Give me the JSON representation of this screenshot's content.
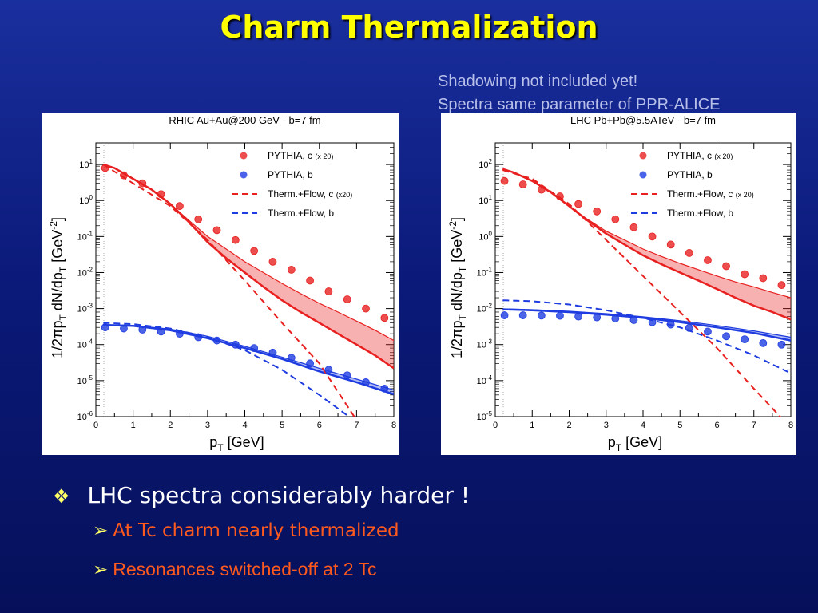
{
  "slide": {
    "title": "Charm Thermalization",
    "note_line1": "Shadowing not included yet!",
    "note_line2": "Spectra same parameter of PPR-ALICE",
    "bullet_main": "LHC spectra considerably harder !",
    "bullet_sub1": "At Tc charm nearly thermalized",
    "bullet_sub2": "Resonances switched-off at 2 Tc",
    "bullet_main_marker": "❖",
    "bullet_sub_marker": "➢",
    "colors": {
      "title": "#ffff00",
      "charm": "#e82020",
      "bottom": "#1e3ce0",
      "sub_bullet": "#ff5a1e"
    }
  },
  "chart_data": [
    {
      "type": "scatter",
      "title": "RHIC Au+Au@200 GeV - b=7 fm",
      "xlabel_main": "p",
      "xlabel_sub": "T",
      "xlabel_unit": "[GeV]",
      "ylabel_a": "1/2",
      "ylabel_pi": "π",
      "ylabel_b": "p",
      "ylabel_t1": "T",
      "ylabel_c": " dN/dp",
      "ylabel_t2": "T",
      "ylabel_d": "  [GeV",
      "ylabel_exp": "-2",
      "ylabel_e": "]",
      "xlim": [
        0,
        8
      ],
      "ylim_exp": [
        -6,
        1.6
      ],
      "log_y": true,
      "xticks": [
        "0",
        "1",
        "2",
        "3",
        "4",
        "5",
        "6",
        "7",
        "8"
      ],
      "yticks": [
        {
          "exp": -6,
          "base": "10",
          "pow": "-6"
        },
        {
          "exp": -5,
          "base": "10",
          "pow": "-5"
        },
        {
          "exp": -4,
          "base": "10",
          "pow": "-4"
        },
        {
          "exp": -3,
          "base": "10",
          "pow": "-3"
        },
        {
          "exp": -2,
          "base": "10",
          "pow": "-2"
        },
        {
          "exp": -1,
          "base": "10",
          "pow": "-1"
        },
        {
          "exp": 0,
          "base": "10",
          "pow": "0"
        },
        {
          "exp": 1,
          "base": "10",
          "pow": "1"
        }
      ],
      "legend": [
        {
          "text": "PYTHIA, c",
          "small": "(x 20)",
          "kind": "dot",
          "color": "#e82020"
        },
        {
          "text": "PYTHIA, b",
          "small": "",
          "kind": "dot",
          "color": "#1e3ce0"
        },
        {
          "text": "Therm.+Flow, c",
          "small": "(x20)",
          "kind": "dash",
          "color": "#e82020"
        },
        {
          "text": "Therm.+Flow, b",
          "small": "",
          "kind": "dash",
          "color": "#1e3ce0"
        }
      ],
      "series": [
        {
          "name": "PYTHIA, c",
          "kind": "points",
          "color": "#e82020",
          "x": [
            0.25,
            0.75,
            1.25,
            1.75,
            2.25,
            2.75,
            3.25,
            3.75,
            4.25,
            4.75,
            5.25,
            5.75,
            6.25,
            6.75,
            7.25,
            7.75
          ],
          "y": [
            8,
            5,
            3,
            1.5,
            0.7,
            0.3,
            0.15,
            0.08,
            0.04,
            0.02,
            0.012,
            0.006,
            0.003,
            0.0018,
            0.001,
            0.00055
          ]
        },
        {
          "name": "PYTHIA, b",
          "kind": "points",
          "color": "#1e3ce0",
          "x": [
            0.25,
            0.75,
            1.25,
            1.75,
            2.25,
            2.75,
            3.25,
            3.75,
            4.25,
            4.75,
            5.25,
            5.75,
            6.25,
            6.75,
            7.25,
            7.75
          ],
          "y": [
            0.0003,
            0.00028,
            0.00026,
            0.00023,
            0.0002,
            0.00016,
            0.00013,
            0.0001,
            8e-05,
            6e-05,
            4.3e-05,
            3e-05,
            2e-05,
            1.4e-05,
            9e-06,
            6e-06
          ]
        },
        {
          "name": "Therm.+Flow, c",
          "kind": "dash",
          "color": "#e82020",
          "x": [
            0.2,
            1,
            2,
            3,
            4,
            5,
            6,
            7
          ],
          "y": [
            10,
            3,
            0.7,
            0.08,
            0.006,
            0.0004,
            3e-05,
            8e-07
          ]
        },
        {
          "name": "Therm.+Flow, b",
          "kind": "dash",
          "color": "#1e3ce0",
          "x": [
            0.2,
            1,
            2,
            3,
            4,
            5,
            6,
            7
          ],
          "y": [
            0.0004,
            0.00037,
            0.00028,
            0.00016,
            7e-05,
            2e-05,
            4e-06,
            7e-07
          ]
        },
        {
          "kind": "band",
          "color": "#e82020",
          "x": [
            0.2,
            0.5,
            1,
            1.5,
            2,
            2.5,
            3,
            3.5,
            4,
            4.5,
            5,
            5.5,
            6,
            6.5,
            7,
            7.5,
            8
          ],
          "y_low": [
            10,
            8,
            4,
            2,
            0.8,
            0.25,
            0.07,
            0.025,
            0.01,
            0.004,
            0.0017,
            0.0008,
            0.0004,
            0.0002,
            0.0001,
            5e-05,
            2.2e-05
          ],
          "y_high": [
            10,
            8,
            4,
            2,
            0.8,
            0.28,
            0.1,
            0.045,
            0.02,
            0.01,
            0.005,
            0.0026,
            0.0014,
            0.0008,
            0.00045,
            0.00025,
            0.00013
          ]
        },
        {
          "kind": "band",
          "color": "#1e3ce0",
          "x": [
            0.2,
            1,
            2,
            3,
            4,
            5,
            6,
            7,
            8
          ],
          "y_low": [
            0.00035,
            0.00033,
            0.00025,
            0.00015,
            8e-05,
            4e-05,
            1.8e-05,
            9e-06,
            4.2e-06
          ],
          "y_high": [
            0.00036,
            0.00034,
            0.00027,
            0.00017,
            9e-05,
            4.5e-05,
            2.2e-05,
            1.1e-05,
            5.5e-06
          ]
        }
      ]
    },
    {
      "type": "scatter",
      "title": "LHC Pb+Pb@5.5ATeV - b=7 fm",
      "xlabel_main": "p",
      "xlabel_sub": "T",
      "xlabel_unit": "[GeV]",
      "ylabel_a": "1/2",
      "ylabel_pi": "π",
      "ylabel_b": "p",
      "ylabel_t1": "T",
      "ylabel_c": " dN/dp",
      "ylabel_t2": "T",
      "ylabel_d": "  [GeV",
      "ylabel_exp": "-2",
      "ylabel_e": "]",
      "xlim": [
        0,
        8
      ],
      "ylim_exp": [
        -5,
        2.6
      ],
      "log_y": true,
      "xticks": [
        "0",
        "1",
        "2",
        "3",
        "4",
        "5",
        "6",
        "7",
        "8"
      ],
      "yticks": [
        {
          "exp": -5,
          "base": "10",
          "pow": "-5"
        },
        {
          "exp": -4,
          "base": "10",
          "pow": "-4"
        },
        {
          "exp": -3,
          "base": "10",
          "pow": "-3"
        },
        {
          "exp": -2,
          "base": "10",
          "pow": "-2"
        },
        {
          "exp": -1,
          "base": "10",
          "pow": "-1"
        },
        {
          "exp": 0,
          "base": "10",
          "pow": "0"
        },
        {
          "exp": 1,
          "base": "10",
          "pow": "1"
        },
        {
          "exp": 2,
          "base": "10",
          "pow": "2"
        }
      ],
      "legend": [
        {
          "text": "PYTHIA, c",
          "small": "(x 20)",
          "kind": "dot",
          "color": "#e82020"
        },
        {
          "text": "PYTHIA, b",
          "small": "",
          "kind": "dot",
          "color": "#1e3ce0"
        },
        {
          "text": "Therm.+Flow, c",
          "small": "(x 20)",
          "kind": "dash",
          "color": "#e82020"
        },
        {
          "text": "Therm.+Flow, b",
          "small": "",
          "kind": "dash",
          "color": "#1e3ce0"
        }
      ],
      "series": [
        {
          "name": "PYTHIA, c",
          "kind": "points",
          "color": "#e82020",
          "x": [
            0.25,
            0.75,
            1.25,
            1.75,
            2.25,
            2.75,
            3.25,
            3.75,
            4.25,
            4.75,
            5.25,
            5.75,
            6.25,
            6.75,
            7.25,
            7.75
          ],
          "y": [
            35,
            28,
            20,
            13,
            8,
            5,
            3,
            1.8,
            1,
            0.6,
            0.35,
            0.22,
            0.15,
            0.09,
            0.07,
            0.045
          ]
        },
        {
          "name": "PYTHIA, b",
          "kind": "points",
          "color": "#1e3ce0",
          "x": [
            0.25,
            0.75,
            1.25,
            1.75,
            2.25,
            2.75,
            3.25,
            3.75,
            4.25,
            4.75,
            5.25,
            5.75,
            6.25,
            6.75,
            7.25,
            7.75
          ],
          "y": [
            0.0065,
            0.0065,
            0.0064,
            0.0063,
            0.006,
            0.0057,
            0.0053,
            0.0048,
            0.0042,
            0.0036,
            0.0029,
            0.0023,
            0.0017,
            0.0014,
            0.0011,
            0.001
          ]
        },
        {
          "name": "Therm.+Flow, c",
          "kind": "dash",
          "color": "#e82020",
          "x": [
            0.2,
            1,
            2,
            3,
            4,
            5,
            6,
            7,
            7.8
          ],
          "y": [
            70,
            40,
            8,
            0.8,
            0.08,
            0.008,
            0.0008,
            6e-05,
            8e-06
          ]
        },
        {
          "name": "Therm.+Flow, b",
          "kind": "dash",
          "color": "#1e3ce0",
          "x": [
            0.2,
            1,
            2,
            3,
            4,
            5,
            6,
            7,
            8
          ],
          "y": [
            0.017,
            0.016,
            0.013,
            0.009,
            0.0055,
            0.003,
            0.0013,
            0.0005,
            0.00016
          ]
        },
        {
          "kind": "band",
          "color": "#e82020",
          "x": [
            0.2,
            0.5,
            1,
            1.5,
            2,
            2.5,
            3,
            3.5,
            4,
            4.5,
            5,
            5.5,
            6,
            6.5,
            7,
            7.5,
            8
          ],
          "y_low": [
            75,
            60,
            35,
            17,
            7,
            2.8,
            1.2,
            0.6,
            0.3,
            0.17,
            0.1,
            0.06,
            0.035,
            0.02,
            0.012,
            0.008,
            0.005
          ],
          "y_high": [
            75,
            60,
            35,
            17,
            7,
            3,
            1.4,
            0.8,
            0.45,
            0.28,
            0.18,
            0.12,
            0.08,
            0.055,
            0.04,
            0.028,
            0.02
          ]
        },
        {
          "kind": "band",
          "color": "#1e3ce0",
          "x": [
            0.2,
            1,
            2,
            3,
            4,
            5,
            6,
            7,
            8
          ],
          "y_low": [
            0.0095,
            0.009,
            0.008,
            0.0068,
            0.0055,
            0.0042,
            0.003,
            0.0021,
            0.0013
          ],
          "y_high": [
            0.0098,
            0.0093,
            0.0084,
            0.0072,
            0.0059,
            0.0046,
            0.0034,
            0.0024,
            0.0016
          ]
        }
      ]
    }
  ]
}
